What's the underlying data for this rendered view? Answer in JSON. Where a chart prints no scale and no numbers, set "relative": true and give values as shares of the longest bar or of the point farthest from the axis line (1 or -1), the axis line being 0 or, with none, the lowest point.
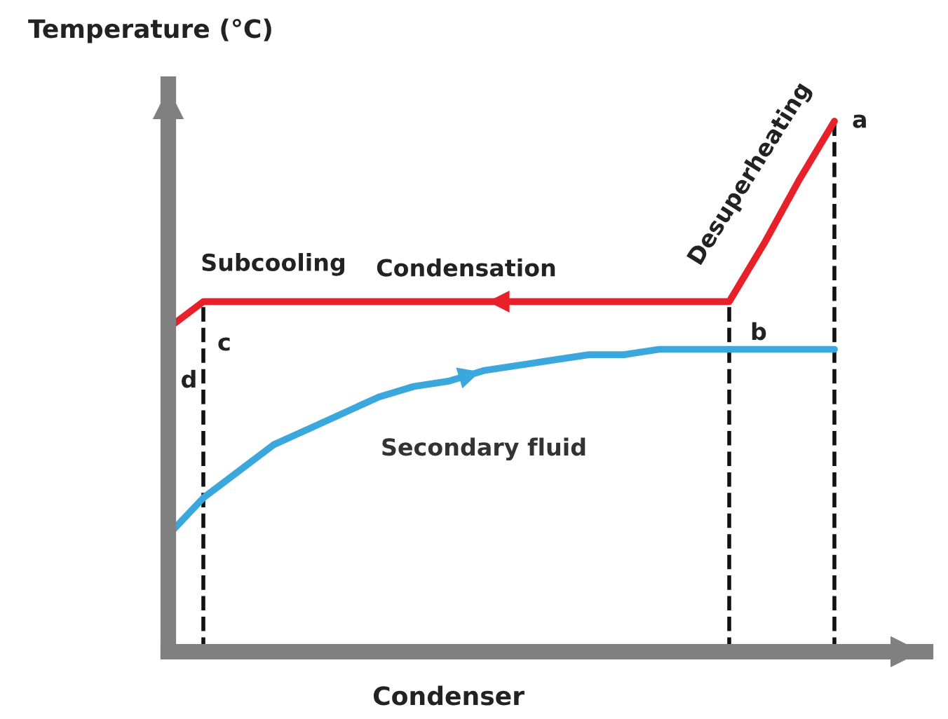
{
  "chart_data": {
    "type": "line",
    "relative": true,
    "ylabel": "Temperature (°C)",
    "xlabel": "Condenser",
    "categories": [
      null,
      null,
      null,
      null,
      null,
      null,
      null,
      null,
      null,
      null,
      null,
      null,
      null,
      null,
      null,
      null,
      null,
      null,
      null,
      null
    ],
    "series": [
      {
        "color": "#e8202a",
        "values": [
          0.61,
          0.66,
          0.66,
          0.66,
          0.66,
          0.66,
          0.66,
          0.66,
          0.66,
          0.66,
          0.66,
          0.66,
          0.66,
          0.66,
          0.66,
          0.66,
          0.66,
          0.77,
          0.89,
          1.0
        ]
      },
      {
        "name": "Secondary fluid",
        "color": "#3aa8dc",
        "values": [
          0.22,
          0.29,
          0.34,
          0.39,
          0.42,
          0.45,
          0.48,
          0.5,
          0.51,
          0.53,
          0.54,
          0.55,
          0.56,
          0.56,
          0.57,
          0.57,
          0.57,
          0.57,
          0.57,
          0.57
        ]
      }
    ],
    "annotations": [
      "Subcooling",
      "Condensation",
      "Desuperheating",
      "a",
      "b",
      "c",
      "d"
    ],
    "legend": false,
    "marker": "none",
    "line_style": "solid"
  }
}
